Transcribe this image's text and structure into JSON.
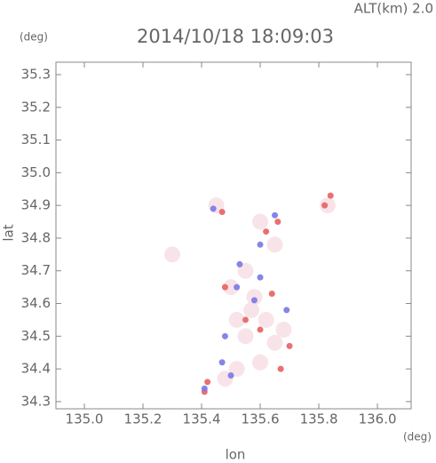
{
  "chart_data": {
    "type": "scatter",
    "title": "2014/10/18 18:09:03",
    "subtitle": "ALT(km) 2.0",
    "x_label": "lon",
    "y_label": "lat",
    "x_unit": "(deg)",
    "y_unit": "(deg)",
    "xlim": [
      134.903,
      136.115
    ],
    "ylim": [
      34.278,
      35.338
    ],
    "xticks": [
      {
        "value": 135.0,
        "label": "135.0"
      },
      {
        "value": 135.2,
        "label": "135.2"
      },
      {
        "value": 135.4,
        "label": "135.4"
      },
      {
        "value": 135.6,
        "label": "135.6"
      },
      {
        "value": 135.8,
        "label": "135.8"
      },
      {
        "value": 136.0,
        "label": "136.0"
      }
    ],
    "yticks": [
      34.3,
      34.4,
      34.5,
      34.6,
      34.7,
      34.8,
      34.9,
      {
        "value": 35.0,
        "label": "35.0"
      },
      35.1,
      35.2,
      35.3
    ],
    "series": [
      {
        "color": "#f6dde2",
        "x": [
          135.45,
          135.6,
          135.65,
          135.55,
          135.5,
          135.58,
          135.62,
          135.55,
          135.65,
          135.6,
          135.52,
          135.48,
          135.68,
          135.57,
          135.52,
          135.83,
          135.3
        ],
        "y": [
          34.9,
          34.85,
          34.78,
          34.7,
          34.65,
          34.62,
          34.55,
          34.5,
          34.48,
          34.42,
          34.4,
          34.37,
          34.52,
          34.58,
          34.55,
          34.9,
          34.75
        ]
      },
      {
        "color": "#e86060",
        "x": [
          135.41,
          135.42,
          135.67,
          135.6,
          135.66,
          135.82,
          135.84,
          135.48,
          135.64,
          135.7,
          135.55,
          135.62,
          135.47
        ],
        "y": [
          34.33,
          34.36,
          34.4,
          34.52,
          34.85,
          34.9,
          34.93,
          34.65,
          34.63,
          34.47,
          34.55,
          34.82,
          34.88
        ]
      },
      {
        "color": "#7878e6",
        "x": [
          135.41,
          135.47,
          135.5,
          135.58,
          135.6,
          135.53,
          135.6,
          135.65,
          135.48,
          135.69,
          135.52,
          135.44
        ],
        "y": [
          34.34,
          34.42,
          34.38,
          34.61,
          34.68,
          34.72,
          34.78,
          34.87,
          34.5,
          34.58,
          34.65,
          34.89
        ]
      }
    ]
  }
}
